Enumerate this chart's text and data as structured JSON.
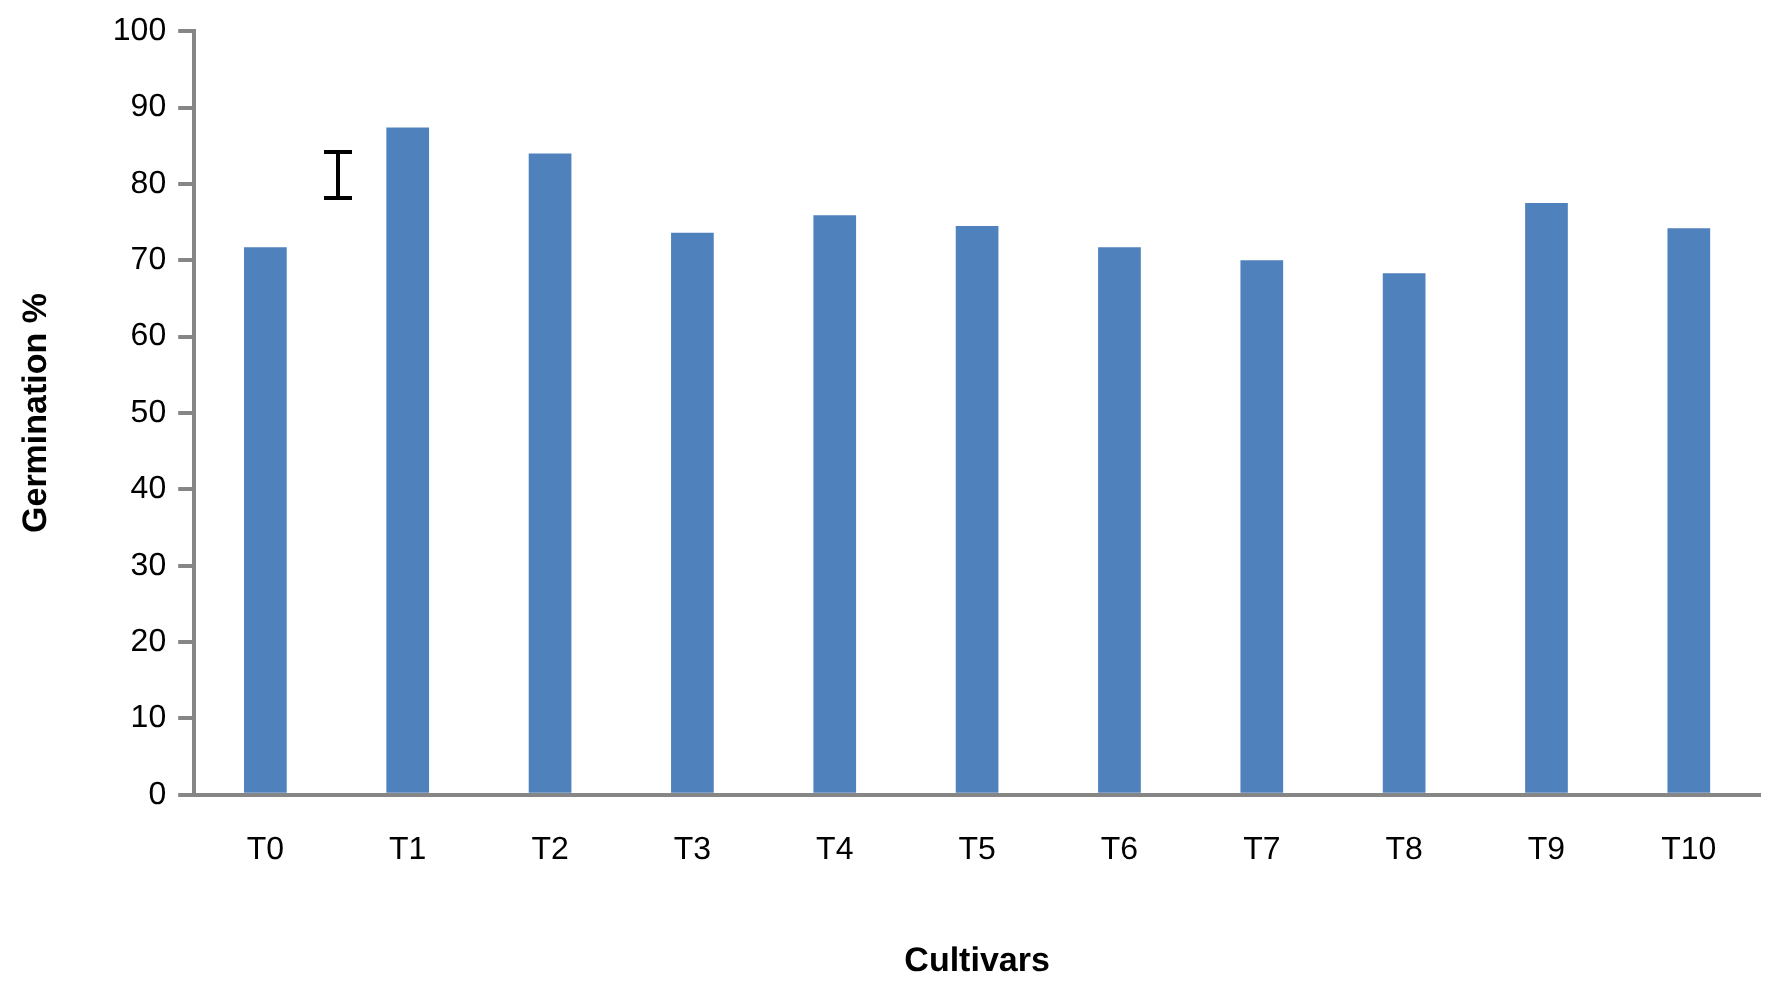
{
  "chart_data": {
    "type": "bar",
    "xlabel": "Cultivars",
    "ylabel": "Germination %",
    "categories": [
      "T0",
      "T1",
      "T2",
      "T3",
      "T4",
      "T5",
      "T6",
      "T7",
      "T8",
      "T9",
      "T10"
    ],
    "values": [
      71.7,
      87.4,
      84.0,
      73.6,
      75.9,
      74.5,
      71.7,
      70.0,
      68.3,
      77.5,
      74.2
    ],
    "color": "#4f81bd",
    "ylim": [
      0,
      100
    ],
    "yticks": [
      0,
      10,
      20,
      30,
      40,
      50,
      60,
      70,
      80,
      90,
      100
    ],
    "grid": false,
    "legend": false
  }
}
